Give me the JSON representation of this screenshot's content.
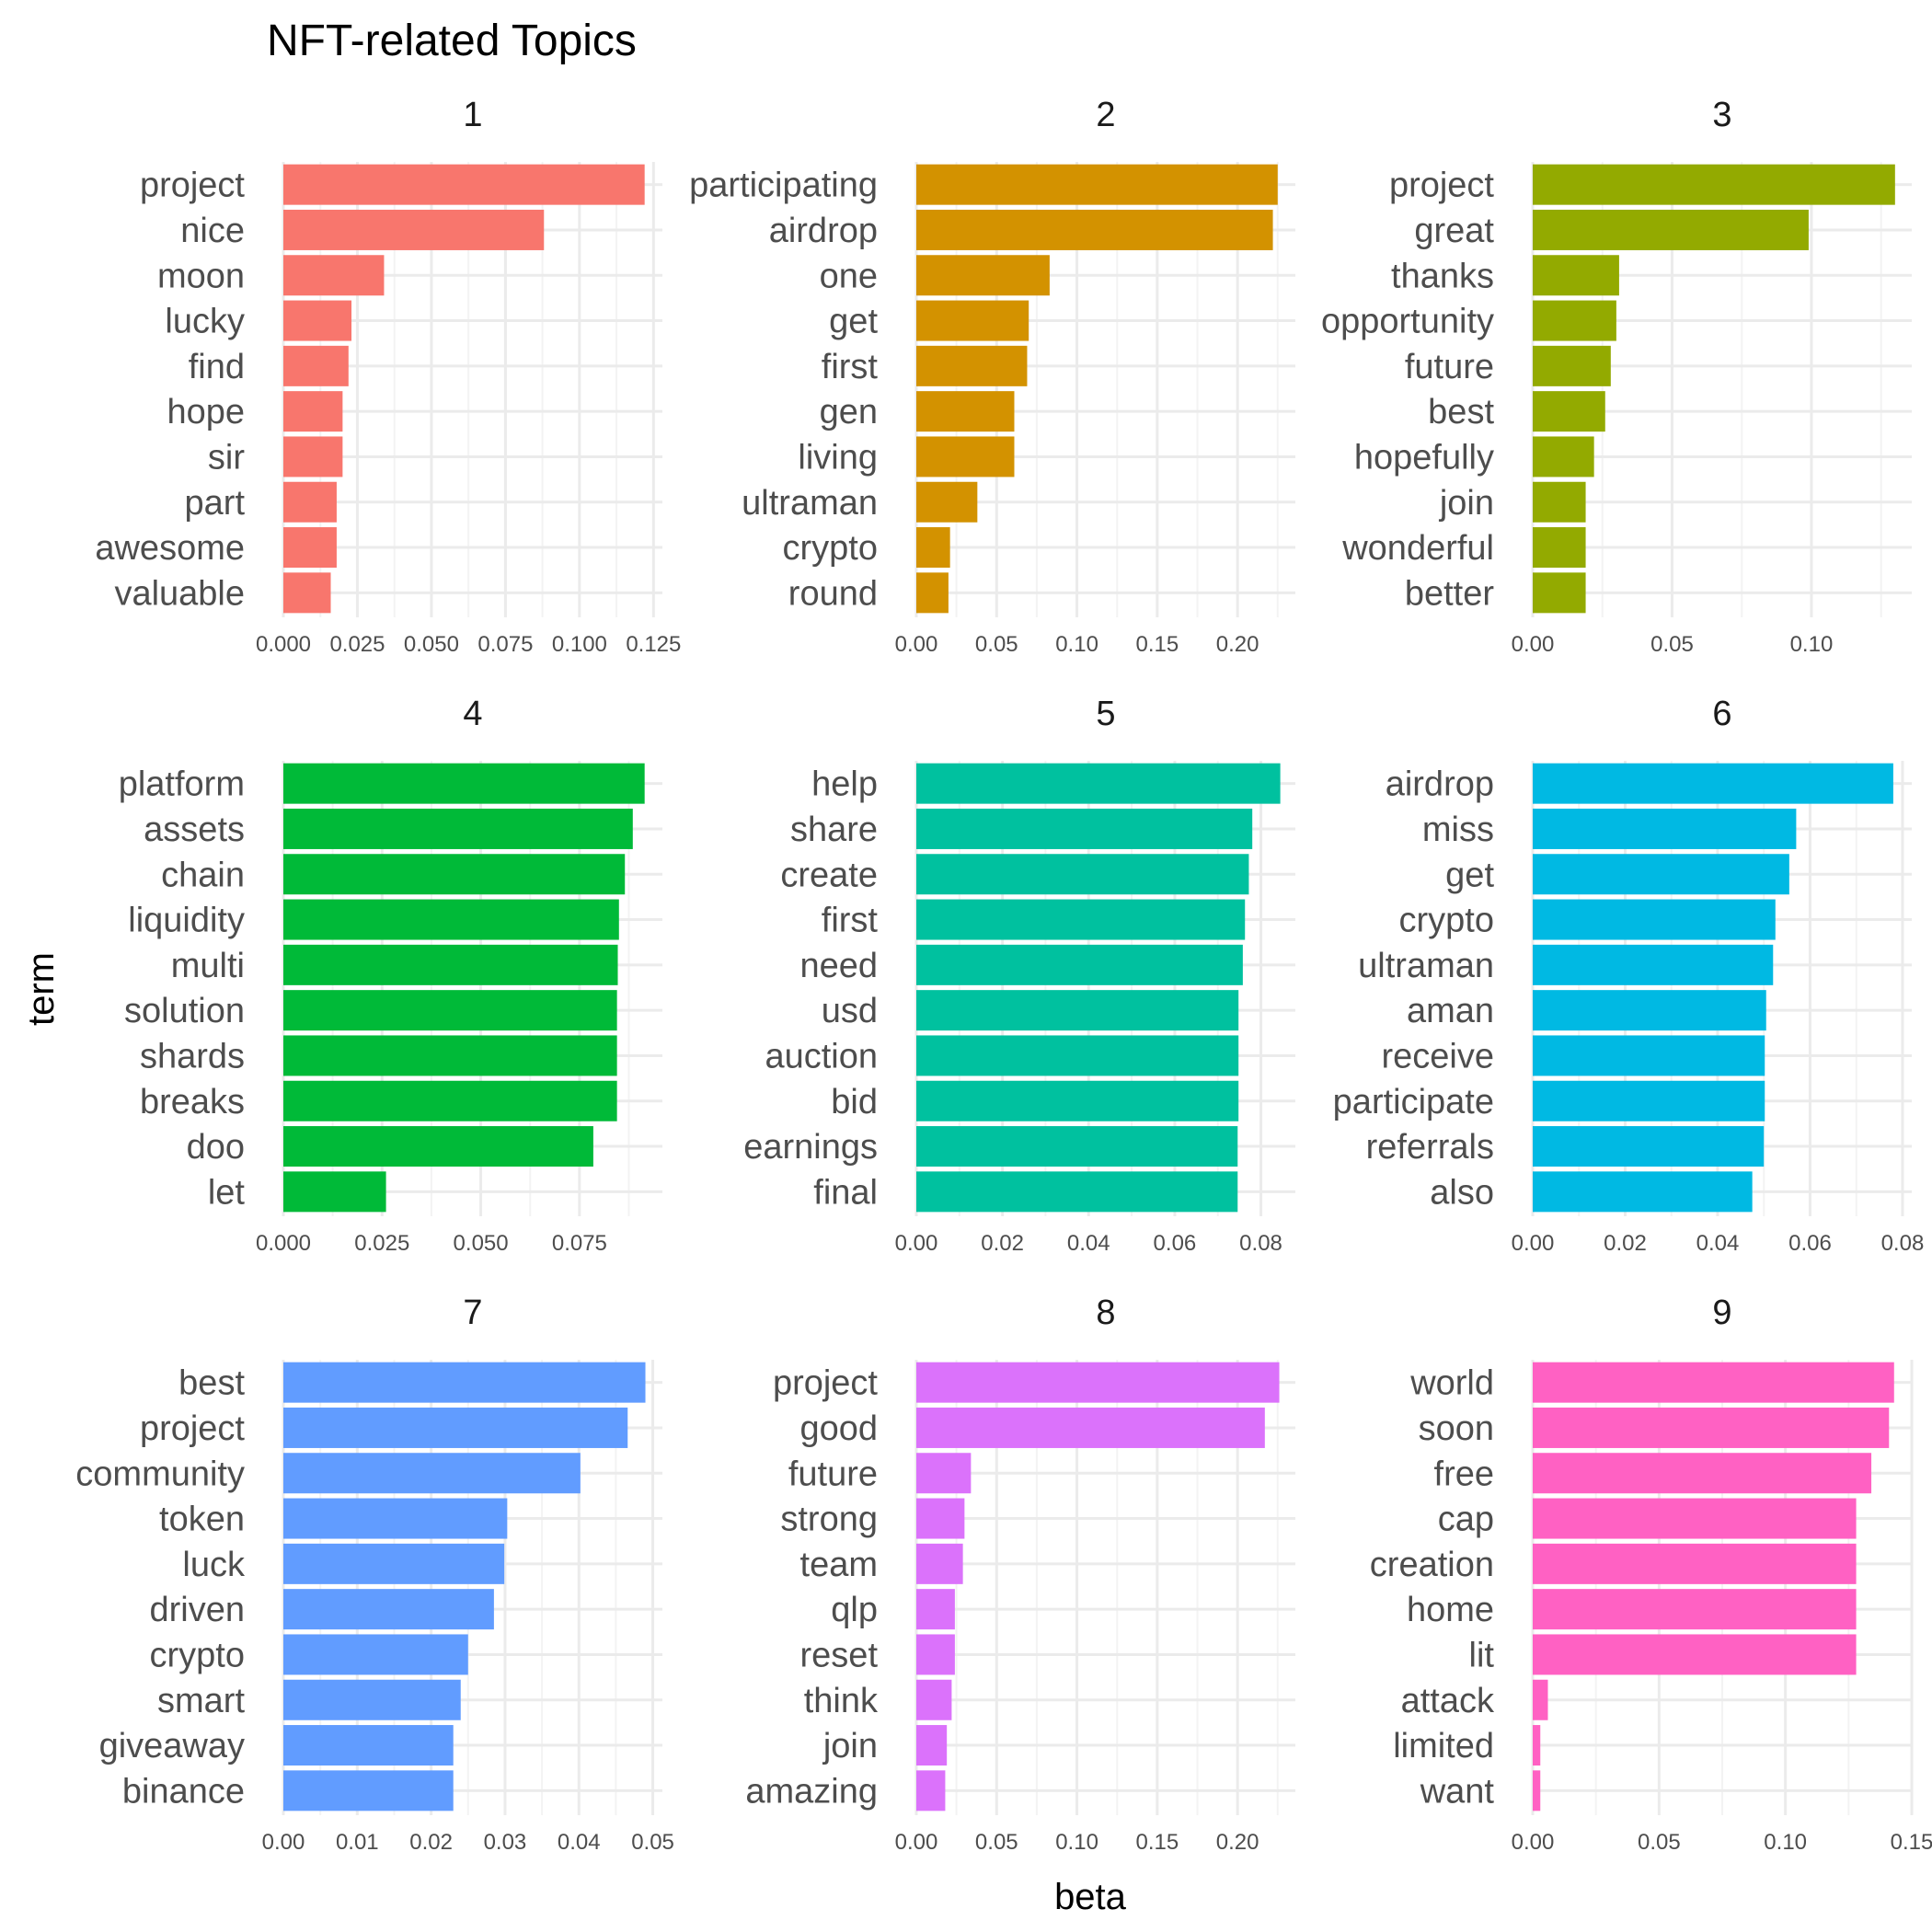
{
  "chart_data": {
    "type": "bar",
    "title": "NFT-related Topics",
    "xlabel": "beta",
    "ylabel": "term",
    "orientation": "horizontal",
    "grid": true,
    "legend": "none",
    "facets": [
      {
        "label": "1",
        "color": "#F8766D",
        "xlim": [
          0,
          0.128
        ],
        "ticks": [
          0.0,
          0.025,
          0.05,
          0.075,
          0.1,
          0.125
        ],
        "tick_labels": [
          "0.000",
          "0.025",
          "0.050",
          "0.075",
          "0.100",
          "0.125"
        ],
        "categories": [
          "project",
          "nice",
          "moon",
          "lucky",
          "find",
          "hope",
          "sir",
          "part",
          "awesome",
          "valuable"
        ],
        "values": [
          0.122,
          0.088,
          0.034,
          0.023,
          0.022,
          0.02,
          0.02,
          0.018,
          0.018,
          0.016
        ]
      },
      {
        "label": "2",
        "color": "#D39200",
        "xlim": [
          0,
          0.236
        ],
        "ticks": [
          0.0,
          0.05,
          0.1,
          0.15,
          0.2
        ],
        "tick_labels": [
          "0.00",
          "0.05",
          "0.10",
          "0.15",
          "0.20"
        ],
        "categories": [
          "participating",
          "airdrop",
          "one",
          "get",
          "first",
          "gen",
          "living",
          "ultraman",
          "crypto",
          "round"
        ],
        "values": [
          0.225,
          0.222,
          0.083,
          0.07,
          0.069,
          0.061,
          0.061,
          0.038,
          0.021,
          0.02
        ]
      },
      {
        "label": "3",
        "color": "#93AA00",
        "xlim": [
          0,
          0.136
        ],
        "ticks": [
          0.0,
          0.05,
          0.1
        ],
        "tick_labels": [
          "0.00",
          "0.05",
          "0.10"
        ],
        "categories": [
          "project",
          "great",
          "thanks",
          "opportunity",
          "future",
          "best",
          "hopefully",
          "join",
          "wonderful",
          "better"
        ],
        "values": [
          0.13,
          0.099,
          0.031,
          0.03,
          0.028,
          0.026,
          0.022,
          0.019,
          0.019,
          0.019
        ]
      },
      {
        "label": "4",
        "color": "#00BA38",
        "xlim": [
          0,
          0.096
        ],
        "ticks": [
          0.0,
          0.025,
          0.05,
          0.075
        ],
        "tick_labels": [
          "0.000",
          "0.025",
          "0.050",
          "0.075"
        ],
        "categories": [
          "platform",
          "assets",
          "chain",
          "liquidity",
          "multi",
          "solution",
          "shards",
          "breaks",
          "doo",
          "let"
        ],
        "values": [
          0.0915,
          0.0885,
          0.0865,
          0.085,
          0.0847,
          0.0845,
          0.0845,
          0.0845,
          0.0785,
          0.026
        ]
      },
      {
        "label": "5",
        "color": "#00C19F",
        "xlim": [
          0,
          0.088
        ],
        "ticks": [
          0.0,
          0.02,
          0.04,
          0.06,
          0.08
        ],
        "tick_labels": [
          "0.00",
          "0.02",
          "0.04",
          "0.06",
          "0.08"
        ],
        "categories": [
          "help",
          "share",
          "create",
          "first",
          "need",
          "usd",
          "auction",
          "bid",
          "earnings",
          "final"
        ],
        "values": [
          0.0845,
          0.078,
          0.0772,
          0.0763,
          0.0758,
          0.0748,
          0.0748,
          0.0748,
          0.0746,
          0.0746
        ]
      },
      {
        "label": "6",
        "color": "#00B9E3",
        "xlim": [
          0,
          0.082
        ],
        "ticks": [
          0.0,
          0.02,
          0.04,
          0.06,
          0.08
        ],
        "tick_labels": [
          "0.00",
          "0.02",
          "0.04",
          "0.06",
          "0.08"
        ],
        "categories": [
          "airdrop",
          "miss",
          "get",
          "crypto",
          "ultraman",
          "aman",
          "receive",
          "participate",
          "referrals",
          "also"
        ],
        "values": [
          0.078,
          0.057,
          0.0555,
          0.0525,
          0.052,
          0.0505,
          0.0502,
          0.0502,
          0.05,
          0.0475
        ]
      },
      {
        "label": "7",
        "color": "#619CFF",
        "xlim": [
          0,
          0.0513
        ],
        "ticks": [
          0.0,
          0.01,
          0.02,
          0.03,
          0.04,
          0.05
        ],
        "tick_labels": [
          "0.00",
          "0.01",
          "0.02",
          "0.03",
          "0.04",
          "0.05"
        ],
        "categories": [
          "best",
          "project",
          "community",
          "token",
          "luck",
          "driven",
          "crypto",
          "smart",
          "giveaway",
          "binance"
        ],
        "values": [
          0.049,
          0.0466,
          0.0402,
          0.0303,
          0.0299,
          0.0285,
          0.025,
          0.024,
          0.023,
          0.023
        ]
      },
      {
        "label": "8",
        "color": "#DB72FB",
        "xlim": [
          0,
          0.236
        ],
        "ticks": [
          0.0,
          0.05,
          0.1,
          0.15,
          0.2
        ],
        "tick_labels": [
          "0.00",
          "0.05",
          "0.10",
          "0.15",
          "0.20"
        ],
        "categories": [
          "project",
          "good",
          "future",
          "strong",
          "team",
          "qlp",
          "reset",
          "think",
          "join",
          "amazing"
        ],
        "values": [
          0.226,
          0.217,
          0.034,
          0.03,
          0.029,
          0.024,
          0.024,
          0.022,
          0.019,
          0.018
        ]
      },
      {
        "label": "9",
        "color": "#FF61C3",
        "xlim": [
          0,
          0.15
        ],
        "ticks": [
          0.0,
          0.05,
          0.1,
          0.15
        ],
        "tick_labels": [
          "0.00",
          "0.05",
          "0.10",
          "0.15"
        ],
        "categories": [
          "world",
          "soon",
          "free",
          "cap",
          "creation",
          "home",
          "lit",
          "attack",
          "limited",
          "want"
        ],
        "values": [
          0.143,
          0.141,
          0.134,
          0.128,
          0.128,
          0.128,
          0.128,
          0.006,
          0.003,
          0.003
        ]
      }
    ]
  }
}
